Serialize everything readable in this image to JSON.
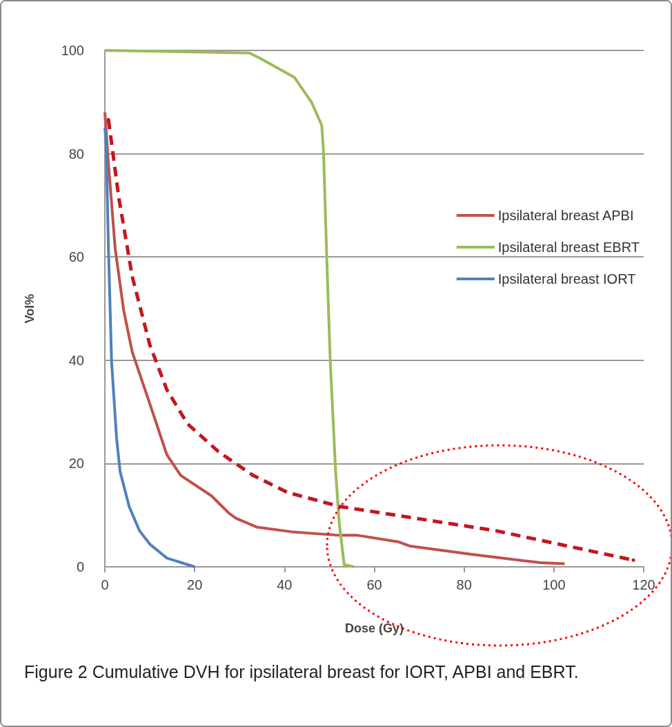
{
  "chart_data": {
    "type": "line",
    "title": "Figure 2 Cumulative DVH for ipsilateral breast for IORT, APBI and EBRT.",
    "xlabel": "Dose (Gy)",
    "ylabel": "Vol%",
    "xlim": [
      0,
      120
    ],
    "xticks": [
      0,
      20,
      40,
      60,
      80,
      100,
      120
    ],
    "ylim": [
      0,
      100
    ],
    "yticks": [
      0,
      20,
      40,
      60,
      80,
      100
    ],
    "grid": "y",
    "legend": "right",
    "marker": "none",
    "series": [
      {
        "name": "Ipsilateral breast APBI",
        "color": "#c0504d",
        "x": [
          0,
          0.8,
          2.3,
          4.2,
          6.1,
          10,
          13.8,
          16.9,
          23.8,
          25.3,
          27.6,
          29.2,
          33.8,
          41.4,
          52.2,
          56.3,
          65.5,
          68,
          81.8,
          97,
          102.4
        ],
        "values": [
          88,
          78,
          61.6,
          49.6,
          41.6,
          31.6,
          21.7,
          17.7,
          13.7,
          12.4,
          10.4,
          9.4,
          7.7,
          6.8,
          6.1,
          6.1,
          4.8,
          4,
          2.4,
          0.8,
          0.6
        ]
      },
      {
        "name": "Ipsilateral breast EBRT",
        "color": "#9bbb59",
        "x": [
          0,
          32.2,
          34.5,
          42.2,
          46,
          48.3,
          48.7,
          49.4,
          50.2,
          51.4,
          52.2,
          53.3,
          55.5
        ],
        "values": [
          100,
          99.5,
          98.5,
          94.8,
          90,
          85.5,
          80.2,
          60.2,
          39.6,
          18.4,
          8.4,
          0.4,
          0
        ]
      },
      {
        "name": "Ipsilateral breast IORT",
        "color": "#4f81bd",
        "x": [
          0,
          0.3,
          0.8,
          1.5,
          2.6,
          3.4,
          5.4,
          7.7,
          10,
          13.8,
          20
        ],
        "values": [
          85,
          81.5,
          61.6,
          39.6,
          25,
          18.4,
          11.7,
          7,
          4.4,
          1.7,
          0
        ]
      },
      {
        "color": "#c0181f",
        "line_style": "dashed",
        "x": [
          0.8,
          3.1,
          6.1,
          10,
          13.8,
          18.4,
          25.3,
          33,
          40.7,
          52.2,
          87,
          117.7
        ],
        "values": [
          86.6,
          71.5,
          56.2,
          43,
          34.3,
          27.7,
          22.3,
          17.7,
          14.4,
          11.7,
          7,
          1.3
        ]
      }
    ]
  }
}
